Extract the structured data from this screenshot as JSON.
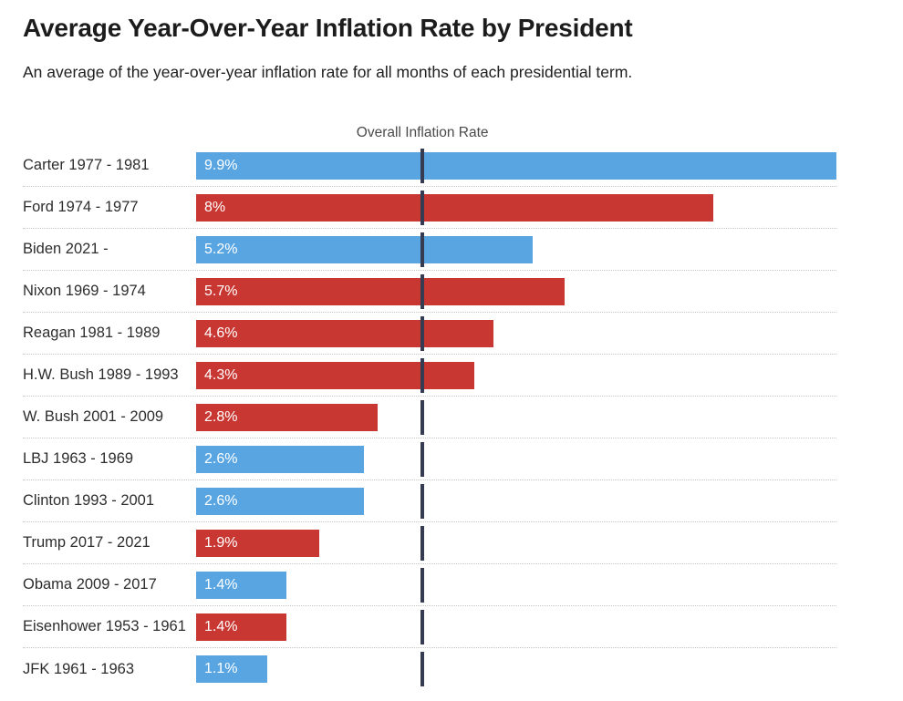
{
  "header": {
    "title": "Average Year-Over-Year Inflation Rate by President",
    "subtitle": "An average of the year-over-year inflation rate for all months of each presidential term."
  },
  "colors": {
    "democrat_bar": "#58a5e2",
    "republican_bar": "#c93732",
    "reference_line": "#353b50"
  },
  "chart_data": {
    "type": "bar",
    "orientation": "horizontal",
    "title": "Average Year-Over-Year Inflation Rate by President",
    "subtitle": "An average of the year-over-year inflation rate for all months of each presidential term.",
    "xlabel": "",
    "ylabel": "",
    "xlim": [
      0,
      9.9
    ],
    "grid": false,
    "legend": "none",
    "reference_line": {
      "label": "Overall Inflation Rate",
      "value": 3.5
    },
    "value_suffix": "%",
    "bars": [
      {
        "label": "Carter 1977 - 1981",
        "value": 9.9,
        "display": "9.9%",
        "party": "democrat"
      },
      {
        "label": "Ford 1974 - 1977",
        "value": 8,
        "display": "8%",
        "party": "republican"
      },
      {
        "label": "Biden 2021 -",
        "value": 5.2,
        "display": "5.2%",
        "party": "democrat"
      },
      {
        "label": "Nixon 1969 - 1974",
        "value": 5.7,
        "display": "5.7%",
        "party": "republican"
      },
      {
        "label": "Reagan 1981 - 1989",
        "value": 4.6,
        "display": "4.6%",
        "party": "republican"
      },
      {
        "label": "H.W. Bush 1989 - 1993",
        "value": 4.3,
        "display": "4.3%",
        "party": "republican"
      },
      {
        "label": "W. Bush 2001 - 2009",
        "value": 2.8,
        "display": "2.8%",
        "party": "republican"
      },
      {
        "label": "LBJ 1963 - 1969",
        "value": 2.6,
        "display": "2.6%",
        "party": "democrat"
      },
      {
        "label": "Clinton 1993 - 2001",
        "value": 2.6,
        "display": "2.6%",
        "party": "democrat"
      },
      {
        "label": "Trump 2017 - 2021",
        "value": 1.9,
        "display": "1.9%",
        "party": "republican"
      },
      {
        "label": "Obama 2009 - 2017",
        "value": 1.4,
        "display": "1.4%",
        "party": "democrat"
      },
      {
        "label": "Eisenhower 1953 - 1961",
        "value": 1.4,
        "display": "1.4%",
        "party": "republican"
      },
      {
        "label": "JFK 1961 - 1963",
        "value": 1.1,
        "display": "1.1%",
        "party": "democrat"
      }
    ]
  }
}
